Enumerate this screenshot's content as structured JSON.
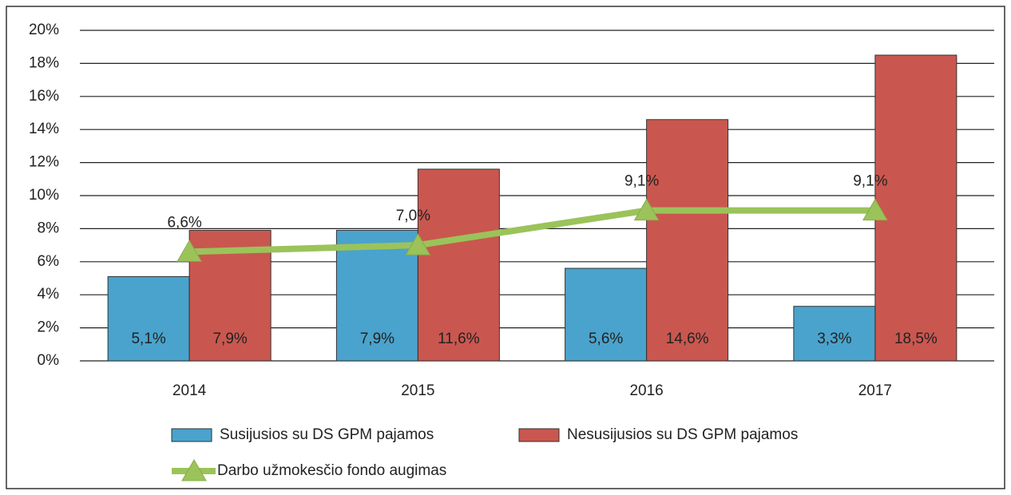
{
  "chart_data": {
    "type": "bar",
    "categories": [
      "2014",
      "2015",
      "2016",
      "2017"
    ],
    "series": [
      {
        "name": "Susijusios su DS GPM pajamos",
        "type": "bar",
        "color": "#4aa3cc",
        "values": [
          5.1,
          7.9,
          5.6,
          3.3
        ],
        "value_labels": [
          "5,1%",
          "7,9%",
          "5,6%",
          "3,3%"
        ]
      },
      {
        "name": "Nesusijusios su DS GPM pajamos",
        "type": "bar",
        "color": "#c9574f",
        "values": [
          7.9,
          11.6,
          14.6,
          18.5
        ],
        "value_labels": [
          "7,9%",
          "11,6%",
          "14,6%",
          "18,5%"
        ]
      },
      {
        "name": "Darbo užmokesčio fondo augimas",
        "type": "line",
        "color": "#9bc35a",
        "values": [
          6.6,
          7.0,
          9.1,
          9.1
        ],
        "value_labels": [
          "6,6%",
          "7,0%",
          "9,1%",
          "9,1%"
        ]
      }
    ],
    "ylim": [
      0,
      20
    ],
    "yticks": [
      {
        "value": 0,
        "label": "0%"
      },
      {
        "value": 2,
        "label": "2%"
      },
      {
        "value": 4,
        "label": "4%"
      },
      {
        "value": 6,
        "label": "6%"
      },
      {
        "value": 8,
        "label": "8%"
      },
      {
        "value": 10,
        "label": "10%"
      },
      {
        "value": 12,
        "label": "12%"
      },
      {
        "value": 14,
        "label": "14%"
      },
      {
        "value": 16,
        "label": "16%"
      },
      {
        "value": 18,
        "label": "18%"
      },
      {
        "value": 20,
        "label": "20%"
      }
    ],
    "grid": true
  }
}
